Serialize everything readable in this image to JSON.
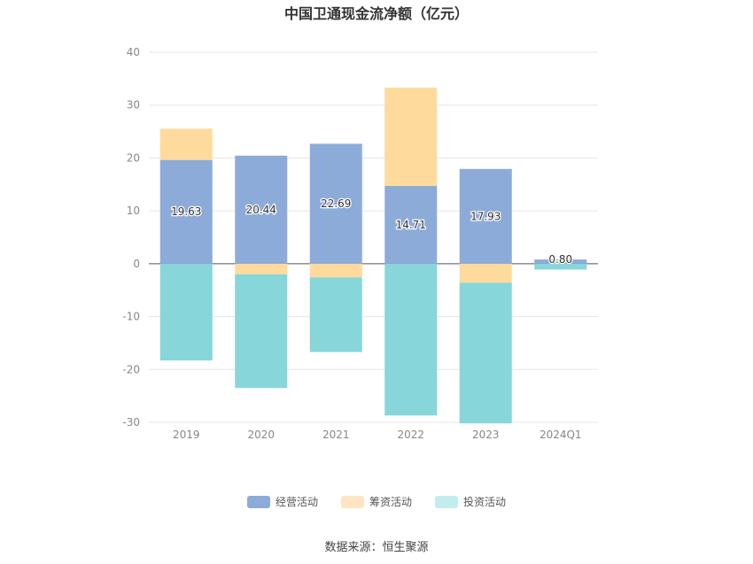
{
  "chart_data": {
    "type": "bar",
    "title": "中国卫通现金流净额（亿元）",
    "categories": [
      "2019",
      "2020",
      "2021",
      "2022",
      "2023",
      "2024Q1"
    ],
    "series": [
      {
        "name": "经营活动",
        "color": "#8dabd9",
        "values": [
          19.63,
          20.44,
          22.69,
          14.71,
          17.93,
          0.8
        ]
      },
      {
        "name": "筹资活动",
        "color": "#fedb9d",
        "values": [
          5.9,
          -2.0,
          -2.6,
          18.6,
          -3.6,
          0.0
        ]
      },
      {
        "name": "投资活动",
        "color": "#86d6da",
        "values": [
          -18.3,
          -21.5,
          -14.1,
          -28.7,
          -26.6,
          -1.1
        ]
      }
    ],
    "data_labels": [
      "19.63",
      "20.44",
      "22.69",
      "14.71",
      "17.93",
      "0.80"
    ],
    "ylim": [
      -30,
      40
    ],
    "yticks": [
      "-30",
      "-20",
      "-10",
      "0",
      "10",
      "20",
      "30",
      "40"
    ],
    "stacked": true,
    "grid": true,
    "legend_position": "bottom"
  },
  "legend": [
    {
      "label": "经营活动",
      "color": "#8dabd9"
    },
    {
      "label": "筹资活动",
      "color": "#fee6c4"
    },
    {
      "label": "投资活动",
      "color": "#c3ecee"
    }
  ],
  "source": "数据来源：恒生聚源"
}
